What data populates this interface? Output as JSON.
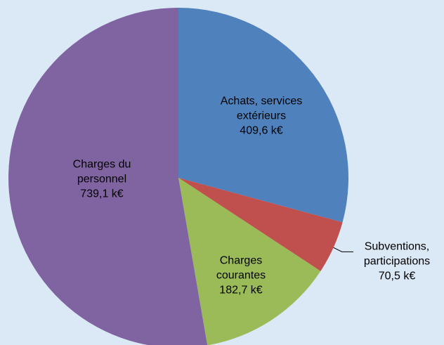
{
  "chart_data": {
    "type": "pie",
    "categories": [
      "Achats, services extérieurs",
      "Subventions, participations",
      "Charges courantes",
      "Charges du personnel"
    ],
    "values": [
      409.6,
      70.5,
      182.7,
      739.1
    ],
    "value_labels": [
      "409,6 k€",
      "70,5 k€",
      "182,7 k€",
      "739,1 k€"
    ],
    "colors": [
      "#4f81bd",
      "#c0504d",
      "#9bbb59",
      "#8064a2"
    ]
  }
}
